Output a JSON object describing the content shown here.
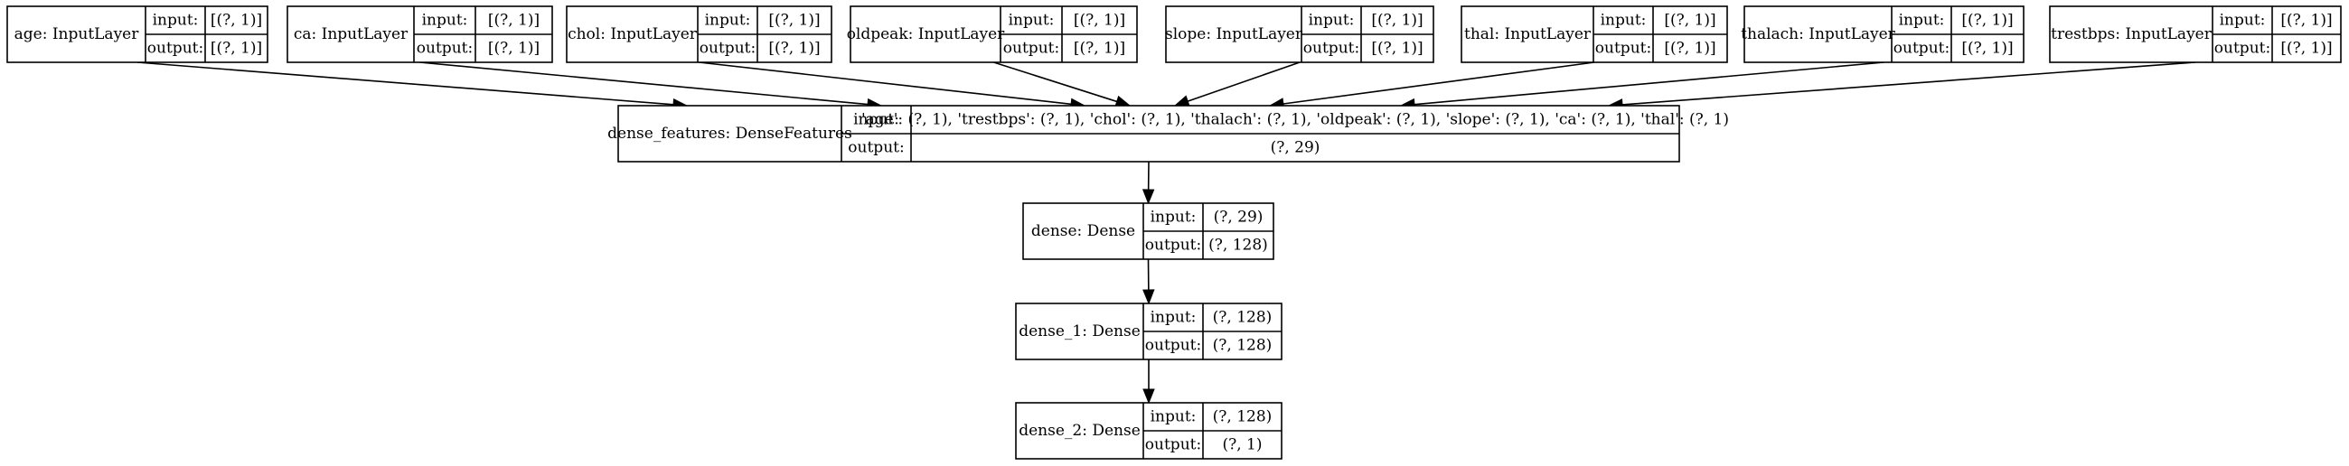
{
  "input_nodes": [
    {
      "id": "age",
      "name": "age: InputLayer",
      "input_label": "input:",
      "input_value": "[(?, 1)]",
      "output_label": "output:",
      "output_value": "[(?, 1)]"
    },
    {
      "id": "ca",
      "name": "ca: InputLayer",
      "input_label": "input:",
      "input_value": "[(?, 1)]",
      "output_label": "output:",
      "output_value": "[(?, 1)]"
    },
    {
      "id": "chol",
      "name": "chol: InputLayer",
      "input_label": "input:",
      "input_value": "[(?, 1)]",
      "output_label": "output:",
      "output_value": "[(?, 1)]"
    },
    {
      "id": "oldpeak",
      "name": "oldpeak: InputLayer",
      "input_label": "input:",
      "input_value": "[(?, 1)]",
      "output_label": "output:",
      "output_value": "[(?, 1)]"
    },
    {
      "id": "slope",
      "name": "slope: InputLayer",
      "input_label": "input:",
      "input_value": "[(?, 1)]",
      "output_label": "output:",
      "output_value": "[(?, 1)]"
    },
    {
      "id": "thal",
      "name": "thal: InputLayer",
      "input_label": "input:",
      "input_value": "[(?, 1)]",
      "output_label": "output:",
      "output_value": "[(?, 1)]"
    },
    {
      "id": "thalach",
      "name": "thalach: InputLayer",
      "input_label": "input:",
      "input_value": "[(?, 1)]",
      "output_label": "output:",
      "output_value": "[(?, 1)]"
    },
    {
      "id": "trestbps",
      "name": "trestbps: InputLayer",
      "input_label": "input:",
      "input_value": "[(?, 1)]",
      "output_label": "output:",
      "output_value": "[(?, 1)]"
    }
  ],
  "dense_features": {
    "name": "dense_features: DenseFeatures",
    "input_label": "input:",
    "input_value": "'age': (?, 1), 'trestbps': (?, 1), 'chol': (?, 1), 'thalach': (?, 1), 'oldpeak': (?, 1), 'slope': (?, 1), 'ca': (?, 1), 'thal': (?, 1)",
    "output_label": "output:",
    "output_value": "(?, 29)"
  },
  "dense": {
    "name": "dense: Dense",
    "input_label": "input:",
    "input_value": "(?, 29)",
    "output_label": "output:",
    "output_value": "(?, 128)"
  },
  "dense_1": {
    "name": "dense_1: Dense",
    "input_label": "input:",
    "input_value": "(?, 128)",
    "output_label": "output:",
    "output_value": "(?, 128)"
  },
  "dense_2": {
    "name": "dense_2: Dense",
    "input_label": "input:",
    "input_value": "(?, 128)",
    "output_label": "output:",
    "output_value": "(?, 1)"
  },
  "edges": [
    {
      "from": "age",
      "to": "dense_features"
    },
    {
      "from": "ca",
      "to": "dense_features"
    },
    {
      "from": "chol",
      "to": "dense_features"
    },
    {
      "from": "oldpeak",
      "to": "dense_features"
    },
    {
      "from": "slope",
      "to": "dense_features"
    },
    {
      "from": "thal",
      "to": "dense_features"
    },
    {
      "from": "thalach",
      "to": "dense_features"
    },
    {
      "from": "trestbps",
      "to": "dense_features"
    },
    {
      "from": "dense_features",
      "to": "dense"
    },
    {
      "from": "dense",
      "to": "dense_1"
    },
    {
      "from": "dense_1",
      "to": "dense_2"
    }
  ]
}
